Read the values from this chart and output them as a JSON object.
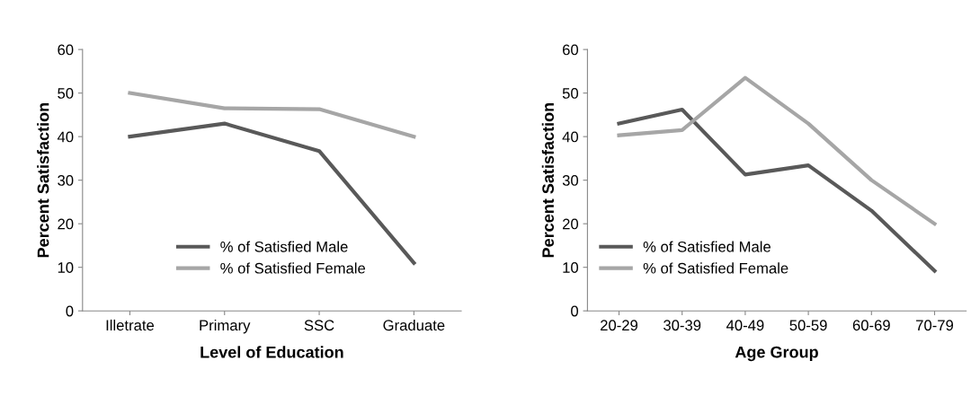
{
  "chart_data": [
    {
      "type": "line",
      "xlabel": "Level of Education",
      "ylabel": "Percent Satisfaction",
      "categories": [
        "Illetrate",
        "Primary",
        "SSC",
        "Graduate"
      ],
      "series": [
        {
          "name": "% of Satisfied Male",
          "color": "#595959",
          "values": [
            40,
            43,
            36.7,
            11
          ]
        },
        {
          "name": "% of Satisfied Female",
          "color": "#a6a6a6",
          "values": [
            50,
            46.5,
            46.3,
            40
          ]
        }
      ],
      "ylim": [
        0,
        60
      ],
      "yticks": [
        0,
        10,
        20,
        30,
        40,
        50,
        60
      ],
      "grid": false,
      "legend": "bottom",
      "marker": "none",
      "line_style": "solid"
    },
    {
      "type": "line",
      "xlabel": "Age Group",
      "ylabel": "Percent Satisfaction",
      "categories": [
        "20-29",
        "30-39",
        "40-49",
        "50-59",
        "60-69",
        "70-79"
      ],
      "series": [
        {
          "name": "% of Satisfied Male",
          "color": "#595959",
          "values": [
            43,
            46.2,
            31.3,
            33.4,
            23,
            9.2
          ]
        },
        {
          "name": "% of Satisfied Female",
          "color": "#a6a6a6",
          "values": [
            40.3,
            41.5,
            53.5,
            43,
            30,
            20
          ]
        }
      ],
      "ylim": [
        0,
        60
      ],
      "yticks": [
        0,
        10,
        20,
        30,
        40,
        50,
        60
      ],
      "grid": false,
      "legend": "bottom left",
      "marker": "none",
      "line_style": "solid"
    }
  ]
}
